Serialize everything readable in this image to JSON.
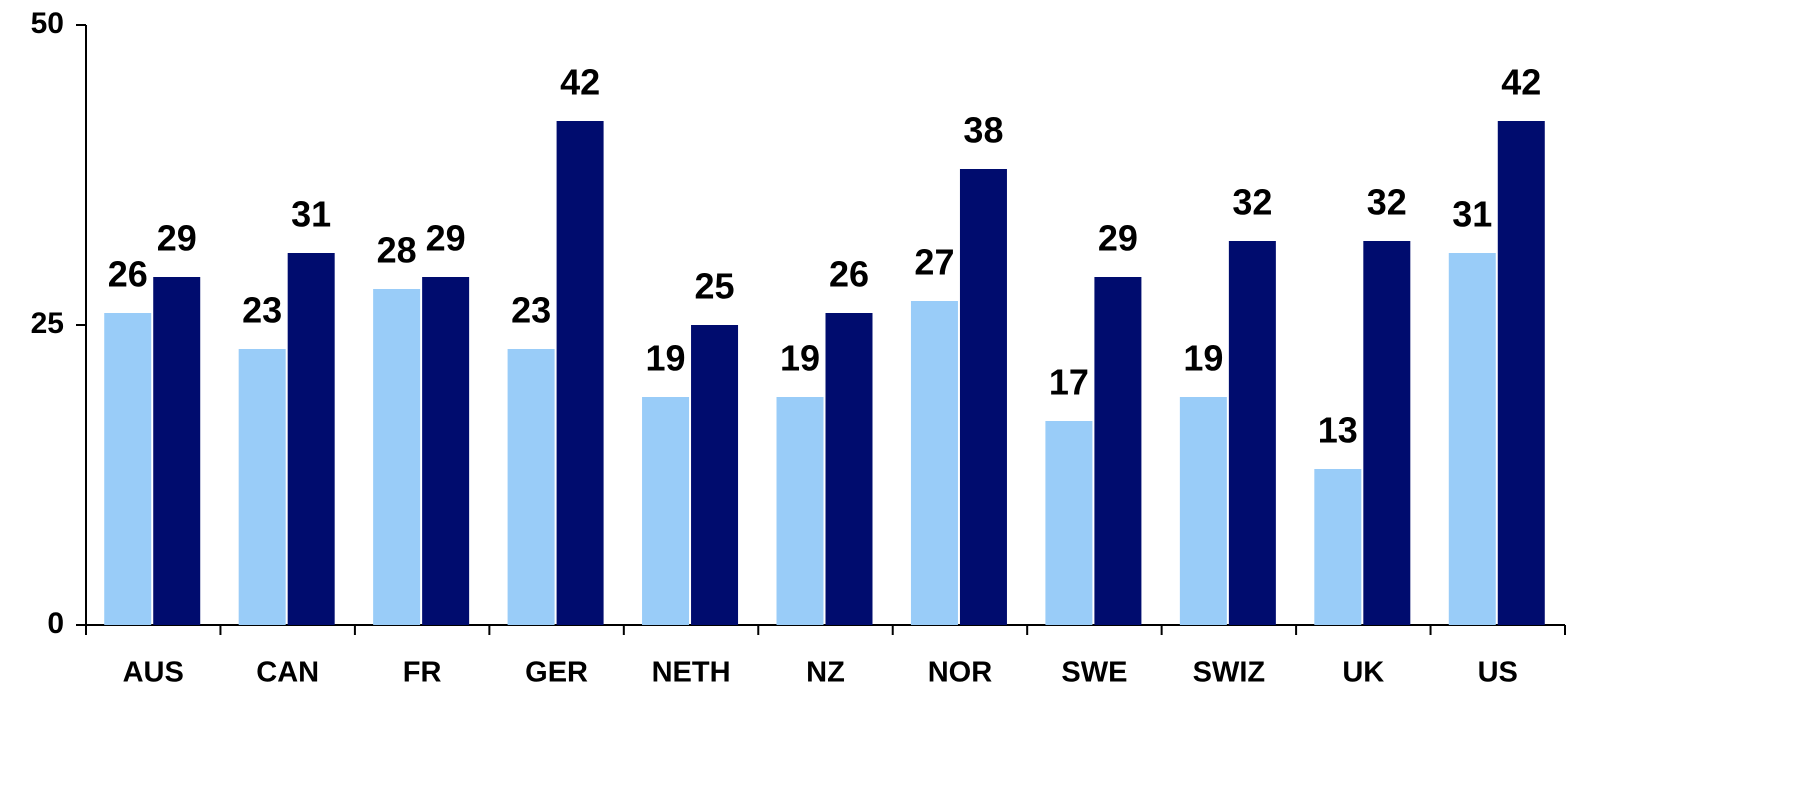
{
  "chart_data": {
    "type": "bar",
    "categories": [
      "AUS",
      "CAN",
      "FR",
      "GER",
      "NETH",
      "NZ",
      "NOR",
      "SWE",
      "SWIZ",
      "UK",
      "US"
    ],
    "series": [
      {
        "color": "#99ccf8",
        "values": [
          26,
          23,
          28,
          23,
          19,
          19,
          27,
          17,
          19,
          13,
          31
        ]
      },
      {
        "color": "#000c6e",
        "values": [
          29,
          31,
          29,
          42,
          25,
          26,
          38,
          29,
          32,
          32,
          42
        ]
      }
    ],
    "ylim": [
      0,
      50
    ],
    "yticks": [
      0,
      25,
      50
    ],
    "grid": false
  }
}
